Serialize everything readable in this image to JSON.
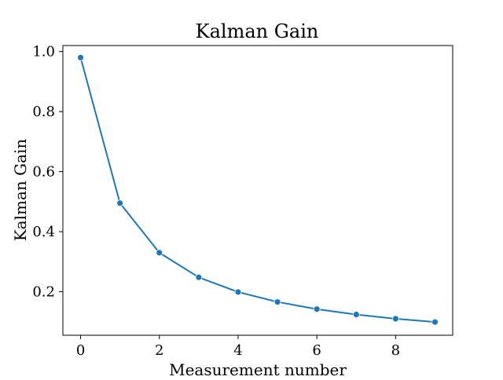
{
  "chart_data": {
    "type": "line",
    "title": "Kalman Gain",
    "xlabel": "Measurement number",
    "ylabel": "Kalman Gain",
    "x": [
      0,
      1,
      2,
      3,
      4,
      5,
      6,
      7,
      8,
      9
    ],
    "series": [
      {
        "values": [
          0.98,
          0.495,
          0.33,
          0.248,
          0.199,
          0.166,
          0.142,
          0.124,
          0.11,
          0.099
        ]
      }
    ],
    "xlim": [
      -0.45,
      9.45
    ],
    "ylim": [
      0.055,
      1.02
    ],
    "xticks": [
      0,
      2,
      4,
      6,
      8
    ],
    "xtick_labels": [
      "0",
      "2",
      "4",
      "6",
      "8"
    ],
    "yticks": [
      0.2,
      0.4,
      0.6,
      0.8,
      1.0
    ],
    "ytick_labels": [
      "0.2",
      "0.4",
      "0.6",
      "0.8",
      "1.0"
    ],
    "grid": false,
    "line_color": "#1f77b4",
    "marker": "circle"
  }
}
